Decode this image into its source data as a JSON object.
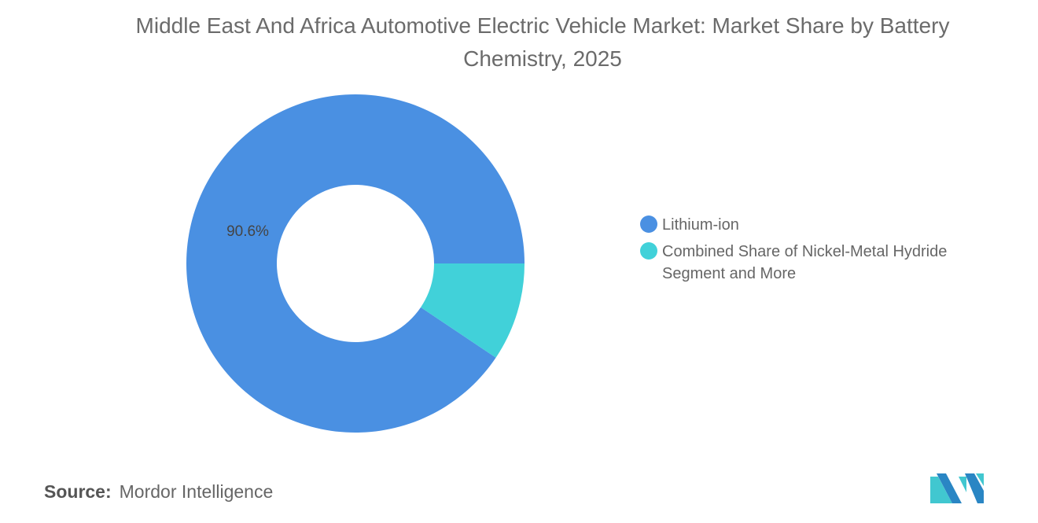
{
  "title": "Middle East And Africa Automotive Electric Vehicle Market: Market Share by Battery Chemistry, 2025",
  "source_label": "Source:",
  "source_value": "Mordor Intelligence",
  "logo_text": "Mordor Intelligence",
  "chart_data": {
    "type": "pie",
    "donut": true,
    "title": "Middle East And Africa Automotive Electric Vehicle Market: Market Share by Battery Chemistry, 2025",
    "categories": [
      "Lithium-ion",
      "Combined Share of Nickel-Metal Hydride Segment and More"
    ],
    "values": [
      90.6,
      9.4
    ],
    "colors": [
      "#4a90e2",
      "#41d1d9"
    ],
    "data_labels": [
      "90.6%",
      ""
    ],
    "legend_position": "right"
  }
}
